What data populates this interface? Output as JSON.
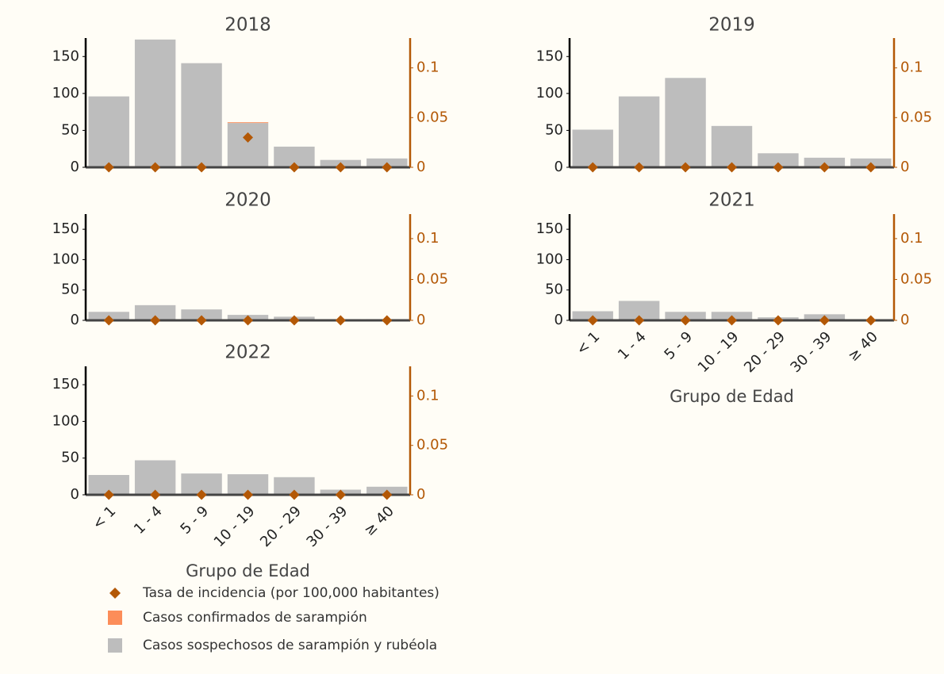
{
  "chart_data": [
    {
      "type": "bar",
      "title": "2018",
      "series": [
        {
          "name": "Tasa de incidencia (por 100,000 habitantes)",
          "color": "#b35806",
          "axis": "y2",
          "values": [
            0,
            0,
            0,
            0.03,
            0,
            0,
            0
          ]
        },
        {
          "name": "Casos confirmados de sarampión",
          "color": "#fc8d59",
          "values": [
            0,
            0,
            0,
            1,
            0,
            0,
            0
          ]
        },
        {
          "name": "Casos sospechosos de sarampión y rubéola",
          "color": "#bdbdbd",
          "values": [
            96,
            173,
            141,
            60,
            28,
            10,
            12
          ]
        }
      ],
      "ylim": [
        0,
        175
      ],
      "yticks": [
        0,
        50,
        100,
        150
      ],
      "y2lim": [
        0,
        0.13
      ],
      "y2ticks": [
        0,
        0.05,
        0.1
      ]
    },
    {
      "type": "bar",
      "title": "2019",
      "series": [
        {
          "name": "Tasa de incidencia (por 100,000 habitantes)",
          "color": "#b35806",
          "axis": "y2",
          "values": [
            0,
            0,
            0,
            0,
            0,
            0,
            0
          ]
        },
        {
          "name": "Casos confirmados de sarampión",
          "color": "#fc8d59",
          "values": [
            0,
            0,
            0,
            0,
            0,
            0,
            0
          ]
        },
        {
          "name": "Casos sospechosos de sarampión y rubéola",
          "color": "#bdbdbd",
          "values": [
            51,
            96,
            121,
            56,
            19,
            13,
            12
          ]
        }
      ],
      "ylim": [
        0,
        175
      ],
      "yticks": [
        0,
        50,
        100,
        150
      ],
      "y2lim": [
        0,
        0.13
      ],
      "y2ticks": [
        0,
        0.05,
        0.1
      ]
    },
    {
      "type": "bar",
      "title": "2020",
      "series": [
        {
          "name": "Tasa de incidencia (por 100,000 habitantes)",
          "color": "#b35806",
          "axis": "y2",
          "values": [
            0,
            0,
            0,
            0,
            0,
            0,
            0
          ]
        },
        {
          "name": "Casos confirmados de sarampión",
          "color": "#fc8d59",
          "values": [
            0,
            0,
            0,
            0,
            0,
            0,
            0
          ]
        },
        {
          "name": "Casos sospechosos de sarampión y rubéola",
          "color": "#bdbdbd",
          "values": [
            14,
            25,
            18,
            9,
            6,
            2,
            2
          ]
        }
      ],
      "ylim": [
        0,
        175
      ],
      "yticks": [
        0,
        50,
        100,
        150
      ],
      "y2lim": [
        0,
        0.13
      ],
      "y2ticks": [
        0,
        0.05,
        0.1
      ]
    },
    {
      "type": "bar",
      "title": "2021",
      "xlabel": "Grupo de Edad",
      "categories": [
        "< 1",
        "1 - 4",
        "5 - 9",
        "10 - 19",
        "20 - 29",
        "30 - 39",
        "≥ 40"
      ],
      "series": [
        {
          "name": "Tasa de incidencia (por 100,000 habitantes)",
          "color": "#b35806",
          "axis": "y2",
          "values": [
            0,
            0,
            0,
            0,
            0,
            0,
            0
          ]
        },
        {
          "name": "Casos confirmados de sarampión",
          "color": "#fc8d59",
          "values": [
            0,
            0,
            0,
            0,
            0,
            0,
            0
          ]
        },
        {
          "name": "Casos sospechosos de sarampión y rubéola",
          "color": "#bdbdbd",
          "values": [
            15,
            32,
            14,
            14,
            5,
            10,
            0
          ]
        }
      ],
      "ylim": [
        0,
        175
      ],
      "yticks": [
        0,
        50,
        100,
        150
      ],
      "y2lim": [
        0,
        0.13
      ],
      "y2ticks": [
        0,
        0.05,
        0.1
      ]
    },
    {
      "type": "bar",
      "title": "2022",
      "xlabel": "Grupo de Edad",
      "categories": [
        "< 1",
        "1 - 4",
        "5 - 9",
        "10 - 19",
        "20 - 29",
        "30 - 39",
        "≥ 40"
      ],
      "series": [
        {
          "name": "Tasa de incidencia (por 100,000 habitantes)",
          "color": "#b35806",
          "axis": "y2",
          "values": [
            0,
            0,
            0,
            0,
            0,
            0,
            0
          ]
        },
        {
          "name": "Casos confirmados de sarampión",
          "color": "#fc8d59",
          "values": [
            0,
            0,
            0,
            0,
            0,
            0,
            0
          ]
        },
        {
          "name": "Casos sospechosos de sarampión y rubéola",
          "color": "#bdbdbd",
          "values": [
            27,
            47,
            29,
            28,
            24,
            7,
            11
          ]
        }
      ],
      "ylim": [
        0,
        175
      ],
      "yticks": [
        0,
        50,
        100,
        150
      ],
      "y2lim": [
        0,
        0.13
      ],
      "y2ticks": [
        0,
        0.05,
        0.1
      ]
    }
  ]
}
